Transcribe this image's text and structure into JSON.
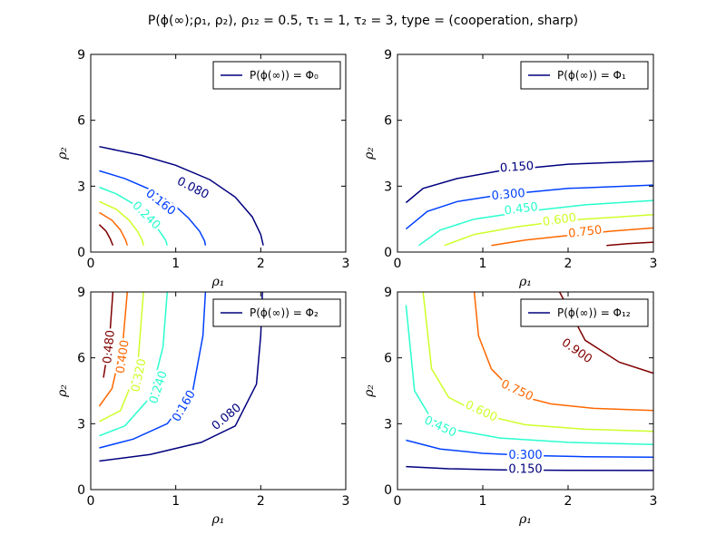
{
  "figure": {
    "title": "P(ϕ(∞);ρ₁, ρ₂), ρ₁₂ = 0.5, τ₁ = 1, τ₂ = 3, type = (cooperation, sharp)"
  },
  "chart_data": [
    {
      "type": "line",
      "subtype": "contour",
      "legend": "P(ϕ(∞)) = Φ₀",
      "legend_position": "top-right",
      "xlabel": "ρ₁",
      "ylabel": "ρ₂",
      "xlim": [
        0,
        3
      ],
      "ylim": [
        0,
        9
      ],
      "xticks": [
        0,
        1,
        2,
        3
      ],
      "yticks": [
        0,
        3,
        6,
        9
      ],
      "series": [
        {
          "level": "0.080",
          "color": "#00007f",
          "x": [
            0.1,
            0.6,
            1.0,
            1.4,
            1.7,
            1.9,
            2.0,
            2.03
          ],
          "y": [
            4.8,
            4.4,
            3.95,
            3.3,
            2.5,
            1.6,
            0.8,
            0.3
          ],
          "label_at": [
            1.2,
            2.9
          ],
          "label_angle": 27
        },
        {
          "level": "0.160",
          "color": "#0040ff",
          "x": [
            0.1,
            0.4,
            0.7,
            0.95,
            1.15,
            1.28,
            1.34,
            1.35
          ],
          "y": [
            3.7,
            3.35,
            2.85,
            2.25,
            1.55,
            0.95,
            0.5,
            0.3
          ],
          "label_at": [
            0.82,
            2.25
          ],
          "label_angle": 38
        },
        {
          "level": "0.240",
          "color": "#29ffce",
          "x": [
            0.1,
            0.3,
            0.5,
            0.65,
            0.8,
            0.88,
            0.9
          ],
          "y": [
            2.95,
            2.65,
            2.2,
            1.65,
            1.0,
            0.55,
            0.3
          ],
          "label_at": [
            0.65,
            1.65
          ],
          "label_angle": 45
        },
        {
          "level": "",
          "color": "#ceff29",
          "x": [
            0.1,
            0.3,
            0.45,
            0.55,
            0.61,
            0.62
          ],
          "y": [
            2.3,
            1.95,
            1.45,
            0.95,
            0.5,
            0.3
          ],
          "label_at": null,
          "label_angle": 0
        },
        {
          "level": "",
          "color": "#ff6800",
          "x": [
            0.1,
            0.25,
            0.35,
            0.41,
            0.43
          ],
          "y": [
            1.8,
            1.45,
            1.0,
            0.55,
            0.3
          ],
          "label_at": null,
          "label_angle": 0
        },
        {
          "level": "",
          "color": "#7f0000",
          "x": [
            0.1,
            0.18,
            0.23,
            0.26
          ],
          "y": [
            1.25,
            0.95,
            0.6,
            0.3
          ],
          "label_at": null,
          "label_angle": 0
        }
      ]
    },
    {
      "type": "line",
      "subtype": "contour",
      "legend": "P(ϕ(∞)) = Φ₁",
      "legend_position": "top-right",
      "xlabel": "ρ₁",
      "ylabel": "ρ₂",
      "xlim": [
        0,
        3
      ],
      "ylim": [
        0,
        9
      ],
      "xticks": [
        0,
        1,
        2,
        3
      ],
      "yticks": [
        0,
        3,
        6,
        9
      ],
      "series": [
        {
          "level": "0.150",
          "color": "#00007f",
          "x": [
            0.1,
            0.3,
            0.7,
            1.2,
            2.0,
            3.0
          ],
          "y": [
            2.25,
            2.9,
            3.35,
            3.7,
            4.0,
            4.15
          ],
          "label_at": [
            1.4,
            3.85
          ],
          "label_angle": -4
        },
        {
          "level": "0.300",
          "color": "#0040ff",
          "x": [
            0.1,
            0.35,
            0.7,
            1.2,
            2.0,
            3.0
          ],
          "y": [
            1.05,
            1.85,
            2.3,
            2.6,
            2.9,
            3.05
          ],
          "label_at": [
            1.3,
            2.6
          ],
          "label_angle": -5
        },
        {
          "level": "0.450",
          "color": "#29ffce",
          "x": [
            0.25,
            0.5,
            0.9,
            1.5,
            2.2,
            3.0
          ],
          "y": [
            0.3,
            1.0,
            1.5,
            1.85,
            2.15,
            2.35
          ],
          "label_at": [
            1.45,
            1.95
          ],
          "label_angle": -7
        },
        {
          "level": "0.600",
          "color": "#ceff29",
          "x": [
            0.55,
            0.9,
            1.4,
            2.0,
            2.6,
            3.0
          ],
          "y": [
            0.3,
            0.8,
            1.15,
            1.45,
            1.6,
            1.7
          ],
          "label_at": [
            1.9,
            1.45
          ],
          "label_angle": -8
        },
        {
          "level": "0.750",
          "color": "#ff6800",
          "x": [
            1.1,
            1.5,
            2.0,
            2.5,
            3.0
          ],
          "y": [
            0.3,
            0.55,
            0.75,
            0.95,
            1.1
          ],
          "label_at": [
            2.2,
            0.9
          ],
          "label_angle": -7
        },
        {
          "level": "",
          "color": "#7f0000",
          "x": [
            2.45,
            2.7,
            3.0
          ],
          "y": [
            0.3,
            0.38,
            0.45
          ],
          "label_at": null,
          "label_angle": 0
        }
      ]
    },
    {
      "type": "line",
      "subtype": "contour",
      "legend": "P(ϕ(∞)) = Φ₂",
      "legend_position": "top-right",
      "xlabel": "ρ₁",
      "ylabel": "ρ₂",
      "xlim": [
        0,
        3
      ],
      "ylim": [
        0,
        9
      ],
      "xticks": [
        0,
        1,
        2,
        3
      ],
      "yticks": [
        0,
        3,
        6,
        9
      ],
      "series": [
        {
          "level": "0.080",
          "color": "#00007f",
          "x": [
            0.1,
            0.7,
            1.3,
            1.7,
            1.95,
            2.0,
            2.02
          ],
          "y": [
            1.3,
            1.6,
            2.15,
            2.9,
            4.8,
            7.0,
            9.0
          ],
          "label_at": [
            1.6,
            3.3
          ],
          "label_angle": -40
        },
        {
          "level": "0.160",
          "color": "#0040ff",
          "x": [
            0.1,
            0.5,
            0.9,
            1.2,
            1.32,
            1.35
          ],
          "y": [
            1.9,
            2.3,
            3.0,
            4.5,
            7.0,
            9.0
          ],
          "label_at": [
            1.1,
            3.8
          ],
          "label_angle": -60
        },
        {
          "level": "0.240",
          "color": "#29ffce",
          "x": [
            0.1,
            0.4,
            0.7,
            0.85,
            0.9
          ],
          "y": [
            2.45,
            2.9,
            4.2,
            6.5,
            9.0
          ],
          "label_at": [
            0.8,
            4.65
          ],
          "label_angle": -72
        },
        {
          "level": "0.320",
          "color": "#ceff29",
          "x": [
            0.1,
            0.35,
            0.55,
            0.62
          ],
          "y": [
            3.1,
            3.6,
            5.5,
            9.0
          ],
          "label_at": [
            0.57,
            5.2
          ],
          "label_angle": -78
        },
        {
          "level": "0.400",
          "color": "#ff6800",
          "x": [
            0.1,
            0.25,
            0.38,
            0.43
          ],
          "y": [
            3.8,
            4.6,
            6.8,
            9.0
          ],
          "label_at": [
            0.38,
            6.05
          ],
          "label_angle": -82
        },
        {
          "level": "0.480",
          "color": "#7f0000",
          "x": [
            0.15,
            0.22,
            0.26
          ],
          "y": [
            5.1,
            6.8,
            9.0
          ],
          "label_at": [
            0.22,
            6.5
          ],
          "label_angle": -84
        }
      ]
    },
    {
      "type": "line",
      "subtype": "contour",
      "legend": "P(ϕ(∞)) = Φ₁₂",
      "legend_position": "top-right",
      "xlabel": "ρ₁",
      "ylabel": "ρ₂",
      "xlim": [
        0,
        3
      ],
      "ylim": [
        0,
        9
      ],
      "xticks": [
        0,
        1,
        2,
        3
      ],
      "yticks": [
        0,
        3,
        6,
        9
      ],
      "series": [
        {
          "level": "0.150",
          "color": "#00007f",
          "x": [
            0.1,
            0.6,
            1.2,
            2.0,
            3.0
          ],
          "y": [
            1.05,
            0.95,
            0.9,
            0.88,
            0.87
          ],
          "label_at": [
            1.5,
            0.9
          ],
          "label_angle": 0
        },
        {
          "level": "0.300",
          "color": "#0040ff",
          "x": [
            0.1,
            0.5,
            1.0,
            1.6,
            2.2,
            3.0
          ],
          "y": [
            2.25,
            1.85,
            1.65,
            1.55,
            1.5,
            1.48
          ],
          "label_at": [
            1.5,
            1.55
          ],
          "label_angle": 0
        },
        {
          "level": "0.450",
          "color": "#29ffce",
          "x": [
            0.1,
            0.2,
            0.4,
            0.7,
            1.2,
            2.0,
            3.0
          ],
          "y": [
            8.4,
            4.5,
            3.2,
            2.7,
            2.35,
            2.15,
            2.05
          ],
          "label_at": [
            0.5,
            2.85
          ],
          "label_angle": 25
        },
        {
          "level": "0.600",
          "color": "#ceff29",
          "x": [
            0.3,
            0.4,
            0.6,
            1.0,
            1.5,
            2.2,
            3.0
          ],
          "y": [
            9.0,
            5.5,
            4.2,
            3.4,
            2.95,
            2.75,
            2.65
          ],
          "label_at": [
            0.98,
            3.55
          ],
          "label_angle": 25
        },
        {
          "level": "0.750",
          "color": "#ff6800",
          "x": [
            0.9,
            0.95,
            1.1,
            1.4,
            1.8,
            2.3,
            3.0
          ],
          "y": [
            9.0,
            7.0,
            5.5,
            4.3,
            3.9,
            3.7,
            3.6
          ],
          "label_at": [
            1.4,
            4.5
          ],
          "label_angle": 25
        },
        {
          "level": "0.900",
          "color": "#7f0000",
          "x": [
            1.9,
            2.2,
            2.6,
            3.0
          ],
          "y": [
            9.0,
            6.8,
            5.8,
            5.3
          ],
          "label_at": [
            2.1,
            6.3
          ],
          "label_angle": 35
        }
      ]
    }
  ]
}
